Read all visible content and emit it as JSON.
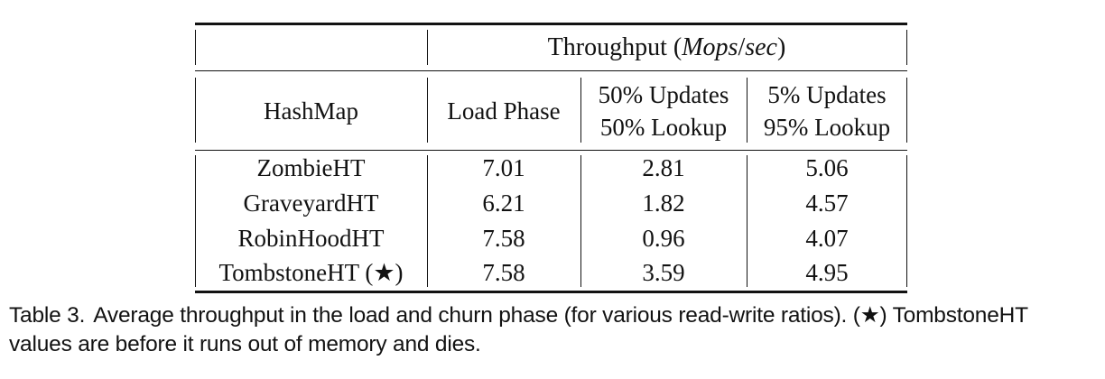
{
  "page": {
    "background": "#ffffff",
    "text_color": "#121212"
  },
  "table": {
    "span_header": {
      "pre": "Throughput (",
      "unit_a": "Mops",
      "slash": "/",
      "unit_b": "sec",
      "post": ")"
    },
    "columns": [
      {
        "line1": "HashMap"
      },
      {
        "line1": "Load Phase"
      },
      {
        "line1": "50% Updates",
        "line2": "50% Lookup"
      },
      {
        "line1": "5% Updates",
        "line2": "95% Lookup"
      }
    ],
    "rows": [
      {
        "name": "ZombieHT",
        "load": "7.01",
        "upd50": "2.81",
        "upd5": "5.06"
      },
      {
        "name": "GraveyardHT",
        "load": "6.21",
        "upd50": "1.82",
        "upd5": "4.57"
      },
      {
        "name": "RobinHoodHT",
        "load": "7.58",
        "upd50": "0.96",
        "upd5": "4.07"
      },
      {
        "name": "TombstoneHT (★)",
        "load": "7.58",
        "upd50": "3.59",
        "upd5": "4.95"
      }
    ]
  },
  "caption": {
    "label": "Table 3.",
    "line1": "Average throughput in the load and churn phase (for various read-write ratios). (★) TombstoneHT",
    "line2": "values are before it runs out of memory and dies."
  },
  "chart_data": {
    "type": "table",
    "title": "Throughput (Mops/sec)",
    "columns": [
      "HashMap",
      "Load Phase",
      "50% Updates 50% Lookup",
      "5% Updates 95% Lookup"
    ],
    "rows": [
      [
        "ZombieHT",
        7.01,
        2.81,
        5.06
      ],
      [
        "GraveyardHT",
        6.21,
        1.82,
        4.57
      ],
      [
        "RobinHoodHT",
        7.58,
        0.96,
        4.07
      ],
      [
        "TombstoneHT (★)",
        7.58,
        3.59,
        4.95
      ]
    ]
  }
}
